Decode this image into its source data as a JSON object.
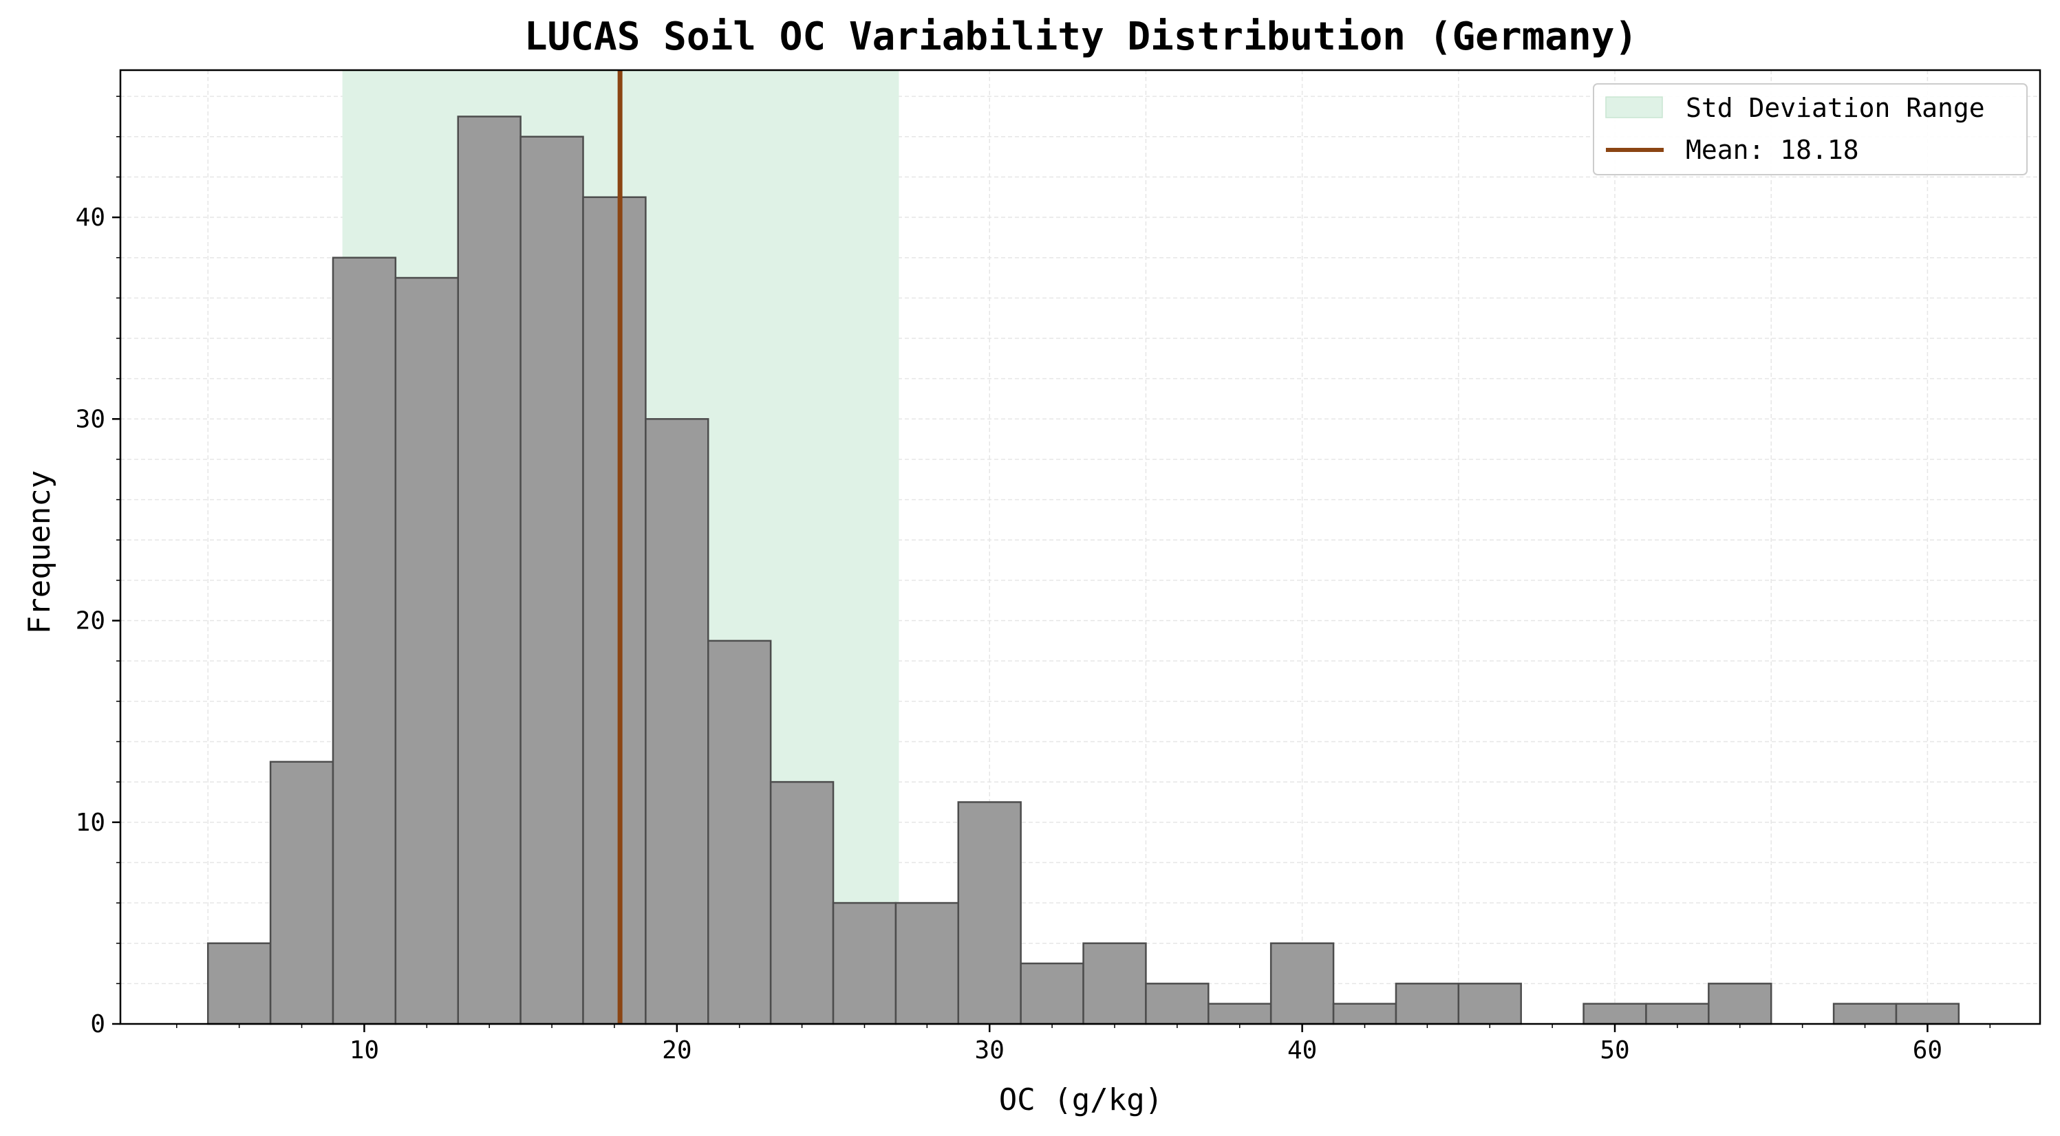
{
  "chart_data": {
    "type": "bar",
    "title": "LUCAS Soil OC Variability Distribution (Germany)",
    "xlabel": "OC (g/kg)",
    "ylabel": "Frequency",
    "xlim": [
      2.2,
      63.6
    ],
    "ylim": [
      0,
      47.3
    ],
    "grid": true,
    "legend_position": "top-right",
    "bin_width": 2,
    "bins": [
      {
        "x0": 5,
        "x1": 7,
        "count": 4
      },
      {
        "x0": 7,
        "x1": 9,
        "count": 13
      },
      {
        "x0": 9,
        "x1": 11,
        "count": 38
      },
      {
        "x0": 11,
        "x1": 13,
        "count": 37
      },
      {
        "x0": 13,
        "x1": 15,
        "count": 45
      },
      {
        "x0": 15,
        "x1": 17,
        "count": 44
      },
      {
        "x0": 17,
        "x1": 19,
        "count": 41
      },
      {
        "x0": 19,
        "x1": 21,
        "count": 30
      },
      {
        "x0": 21,
        "x1": 23,
        "count": 19
      },
      {
        "x0": 23,
        "x1": 25,
        "count": 12
      },
      {
        "x0": 25,
        "x1": 27,
        "count": 6
      },
      {
        "x0": 27,
        "x1": 29,
        "count": 6
      },
      {
        "x0": 29,
        "x1": 31,
        "count": 11
      },
      {
        "x0": 31,
        "x1": 33,
        "count": 3
      },
      {
        "x0": 33,
        "x1": 35,
        "count": 4
      },
      {
        "x0": 35,
        "x1": 37,
        "count": 2
      },
      {
        "x0": 37,
        "x1": 39,
        "count": 1
      },
      {
        "x0": 39,
        "x1": 41,
        "count": 4
      },
      {
        "x0": 41,
        "x1": 43,
        "count": 1
      },
      {
        "x0": 43,
        "x1": 45,
        "count": 2
      },
      {
        "x0": 45,
        "x1": 47,
        "count": 2
      },
      {
        "x0": 47,
        "x1": 49,
        "count": 0
      },
      {
        "x0": 49,
        "x1": 51,
        "count": 1
      },
      {
        "x0": 51,
        "x1": 53,
        "count": 1
      },
      {
        "x0": 53,
        "x1": 55,
        "count": 2
      },
      {
        "x0": 55,
        "x1": 57,
        "count": 0
      },
      {
        "x0": 57,
        "x1": 59,
        "count": 1
      },
      {
        "x0": 59,
        "x1": 61,
        "count": 1
      }
    ],
    "mean": 18.18,
    "std_range": [
      9.3,
      27.1
    ],
    "x_ticks": [
      10,
      20,
      30,
      40,
      50,
      60
    ],
    "y_ticks": [
      0,
      10,
      20,
      30,
      40
    ],
    "legend": {
      "std_label": "Std Deviation Range",
      "mean_label": "Mean: 18.18"
    },
    "colors": {
      "bar_fill": "#9b9b9b",
      "bar_edge": "#4d4d4d",
      "std_band": "#dff2e6",
      "mean_line": "#8b4513",
      "grid": "#e6e6e6"
    }
  }
}
